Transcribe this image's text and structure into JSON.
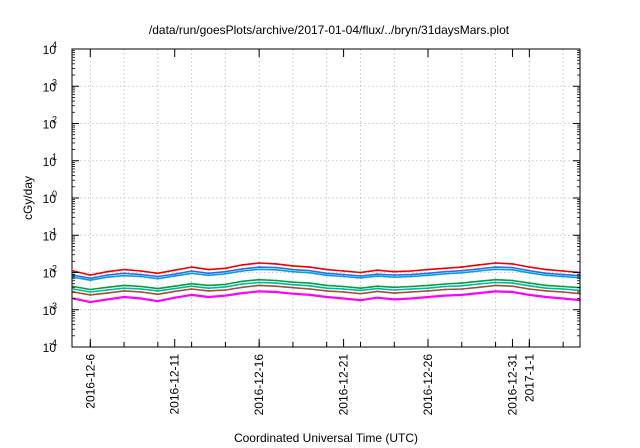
{
  "chart_data": {
    "type": "line",
    "title": "/data/run/goesPlots/archive/2017-01-04/flux/../bryn/31daysMars.plot",
    "xlabel": "Coordinated Universal Time (UTC)",
    "ylabel": "cGy/day",
    "yscale": "log",
    "ylim": [
      0.0001,
      10000
    ],
    "xlim": [
      "2016-12-04 22:00",
      "2017-01-04 00:00"
    ],
    "grid": true,
    "y_ticks": [
      {
        "base": "10",
        "exp": "-4"
      },
      {
        "base": "10",
        "exp": "-3"
      },
      {
        "base": "10",
        "exp": "-2"
      },
      {
        "base": "10",
        "exp": "-1"
      },
      {
        "base": "10",
        "exp": "0"
      },
      {
        "base": "10",
        "exp": "1"
      },
      {
        "base": "10",
        "exp": "2"
      },
      {
        "base": "10",
        "exp": "3"
      },
      {
        "base": "10",
        "exp": "4"
      }
    ],
    "x_ticks": [
      {
        "date": "2016-12-06",
        "label": "2016-12-6"
      },
      {
        "date": "2016-12-11",
        "label": "2016-12-11"
      },
      {
        "date": "2016-12-16",
        "label": "2016-12-16"
      },
      {
        "date": "2016-12-21",
        "label": "2016-12-21"
      },
      {
        "date": "2016-12-26",
        "label": "2016-12-26"
      },
      {
        "date": "2016-12-31",
        "label": "2016-12-31"
      },
      {
        "date": "2017-01-01",
        "label": "2017-1-1"
      }
    ],
    "x": [
      "2016-12-05",
      "2016-12-06",
      "2016-12-07",
      "2016-12-08",
      "2016-12-09",
      "2016-12-10",
      "2016-12-11",
      "2016-12-12",
      "2016-12-13",
      "2016-12-14",
      "2016-12-15",
      "2016-12-16",
      "2016-12-17",
      "2016-12-18",
      "2016-12-19",
      "2016-12-20",
      "2016-12-21",
      "2016-12-22",
      "2016-12-23",
      "2016-12-24",
      "2016-12-25",
      "2016-12-26",
      "2016-12-27",
      "2016-12-28",
      "2016-12-29",
      "2016-12-30",
      "2016-12-31",
      "2017-01-01",
      "2017-01-02",
      "2017-01-03",
      "2017-01-04"
    ],
    "series": [
      {
        "color": "#ee0000",
        "values": [
          0.011,
          0.0085,
          0.0105,
          0.012,
          0.011,
          0.0095,
          0.0115,
          0.014,
          0.012,
          0.013,
          0.016,
          0.018,
          0.017,
          0.015,
          0.014,
          0.012,
          0.011,
          0.01,
          0.0115,
          0.0105,
          0.011,
          0.012,
          0.013,
          0.014,
          0.016,
          0.018,
          0.017,
          0.014,
          0.012,
          0.011,
          0.01
        ]
      },
      {
        "color": "#2b6fe6",
        "values": [
          0.0085,
          0.007,
          0.0085,
          0.0095,
          0.0088,
          0.0078,
          0.009,
          0.011,
          0.0095,
          0.0105,
          0.0125,
          0.014,
          0.0135,
          0.012,
          0.0112,
          0.0095,
          0.0088,
          0.008,
          0.009,
          0.0085,
          0.0088,
          0.0095,
          0.0105,
          0.0112,
          0.0125,
          0.014,
          0.0135,
          0.0112,
          0.0095,
          0.0088,
          0.0082
        ]
      },
      {
        "color": "#00a0e0",
        "values": [
          0.0075,
          0.0062,
          0.0075,
          0.0082,
          0.0078,
          0.0068,
          0.008,
          0.0095,
          0.0084,
          0.0092,
          0.011,
          0.0122,
          0.0118,
          0.0105,
          0.0098,
          0.0084,
          0.0078,
          0.0071,
          0.008,
          0.0075,
          0.0078,
          0.0084,
          0.0092,
          0.0098,
          0.011,
          0.0122,
          0.0118,
          0.0098,
          0.0084,
          0.0078,
          0.0072
        ]
      },
      {
        "color": "#00a040",
        "values": [
          0.0042,
          0.0035,
          0.004,
          0.0045,
          0.0042,
          0.0037,
          0.0043,
          0.005,
          0.0045,
          0.0048,
          0.0058,
          0.0064,
          0.0061,
          0.0055,
          0.0052,
          0.0045,
          0.0042,
          0.0038,
          0.0043,
          0.004,
          0.0042,
          0.0045,
          0.0049,
          0.0052,
          0.0058,
          0.0064,
          0.0061,
          0.0052,
          0.0045,
          0.0042,
          0.0039
        ]
      },
      {
        "color": "#00b8a0",
        "values": [
          0.0036,
          0.003,
          0.0034,
          0.0038,
          0.0036,
          0.0032,
          0.0037,
          0.0043,
          0.0038,
          0.0041,
          0.0049,
          0.0054,
          0.0052,
          0.0047,
          0.0044,
          0.0038,
          0.0036,
          0.0033,
          0.0037,
          0.0034,
          0.0036,
          0.0038,
          0.0042,
          0.0044,
          0.0049,
          0.0054,
          0.0052,
          0.0044,
          0.0038,
          0.0036,
          0.0033
        ]
      },
      {
        "color": "#a05030",
        "values": [
          0.003,
          0.0025,
          0.0028,
          0.0032,
          0.003,
          0.0026,
          0.0031,
          0.0036,
          0.0032,
          0.0034,
          0.004,
          0.0045,
          0.0043,
          0.0039,
          0.0036,
          0.0032,
          0.003,
          0.0027,
          0.0031,
          0.0028,
          0.003,
          0.0032,
          0.0035,
          0.0036,
          0.004,
          0.0045,
          0.0043,
          0.0036,
          0.0032,
          0.003,
          0.0027
        ]
      },
      {
        "color": "#ff00ff",
        "values": [
          0.002,
          0.0016,
          0.0019,
          0.0022,
          0.002,
          0.0017,
          0.0021,
          0.0025,
          0.0022,
          0.0024,
          0.0028,
          0.0031,
          0.003,
          0.0027,
          0.0025,
          0.0022,
          0.002,
          0.0018,
          0.0021,
          0.0019,
          0.002,
          0.0022,
          0.0024,
          0.0025,
          0.0028,
          0.0031,
          0.003,
          0.0025,
          0.0022,
          0.002,
          0.0018
        ]
      }
    ]
  }
}
